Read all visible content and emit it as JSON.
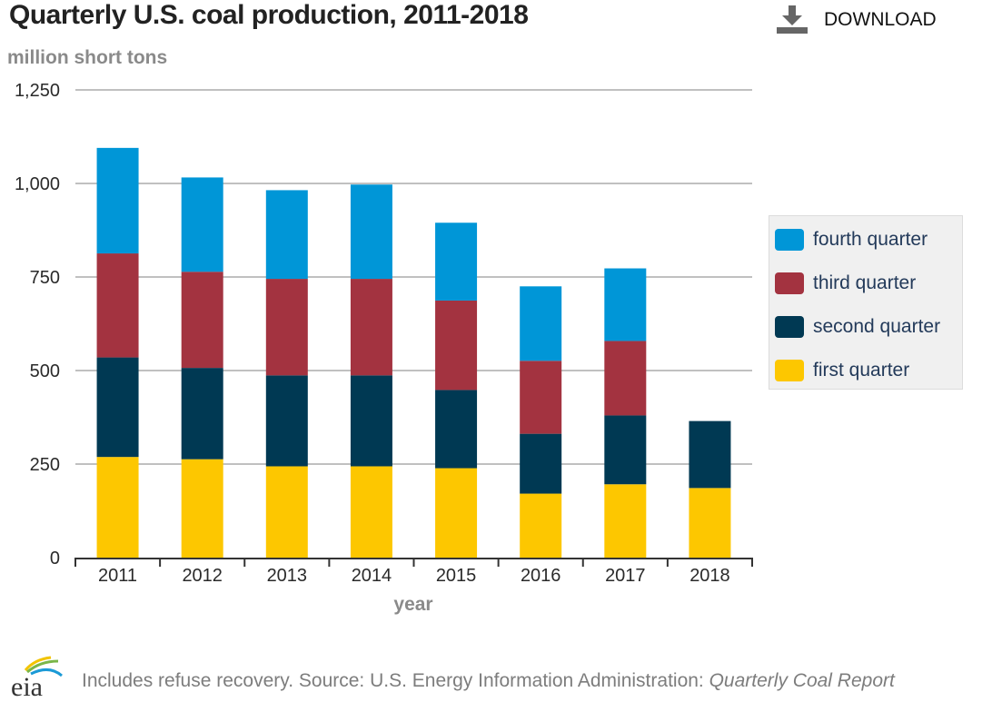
{
  "header": {
    "title": "Quarterly U.S. coal production, 2011-2018",
    "download_label": "DOWNLOAD",
    "download_icon": "download-icon"
  },
  "footer": {
    "logo": "eia-logo",
    "note": "Includes refuse recovery. Source: U.S. Energy Information Administration: ",
    "source_title": "Quarterly Coal Report"
  },
  "chart_data": {
    "type": "bar",
    "stacked": true,
    "title": "Quarterly U.S. coal production, 2011-2018",
    "ylabel": "million short tons",
    "xlabel": "year",
    "ylim": [
      0,
      1250
    ],
    "yticks": [
      0,
      250,
      500,
      750,
      1000,
      1250
    ],
    "ytick_labels": [
      "0",
      "250",
      "500",
      "750",
      "1,000",
      "1,250"
    ],
    "grid": true,
    "legend_position": "right",
    "categories": [
      "2011",
      "2012",
      "2013",
      "2014",
      "2015",
      "2016",
      "2017",
      "2018"
    ],
    "series": [
      {
        "name": "first quarter",
        "color": "#fdc700",
        "values": [
          269,
          263,
          244,
          244,
          239,
          171,
          196,
          186
        ]
      },
      {
        "name": "second quarter",
        "color": "#003953",
        "values": [
          266,
          244,
          243,
          243,
          209,
          160,
          184,
          179
        ]
      },
      {
        "name": "third quarter",
        "color": "#a33340",
        "values": [
          278,
          257,
          258,
          258,
          239,
          195,
          199,
          null
        ]
      },
      {
        "name": "fourth quarter",
        "color": "#0096d7",
        "values": [
          282,
          252,
          237,
          252,
          208,
          199,
          194,
          null
        ]
      }
    ],
    "legend_order": [
      "fourth quarter",
      "third quarter",
      "second quarter",
      "first quarter"
    ]
  }
}
